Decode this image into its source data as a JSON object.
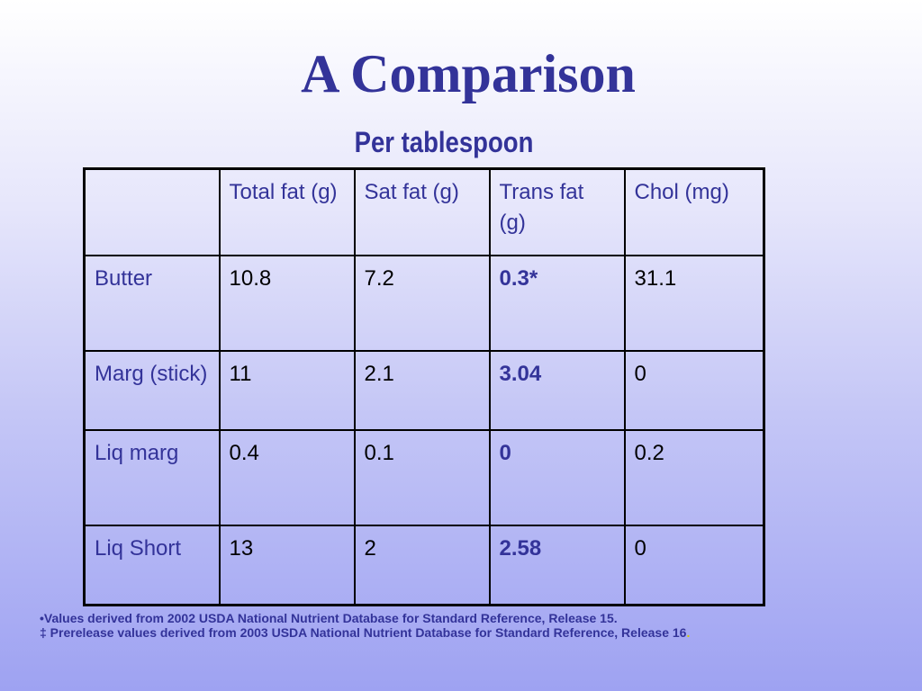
{
  "slide": {
    "title": "A Comparison",
    "subtitle": "Per tablespoon"
  },
  "table": {
    "headers": [
      "",
      "Total fat (g)",
      "Sat fat (g)",
      "Trans fat (g)",
      "Chol (mg)"
    ],
    "rows": [
      {
        "label": "Butter",
        "total_fat": "10.8",
        "sat_fat": "7.2",
        "trans_fat": "0.3*",
        "chol": "31.1"
      },
      {
        "label": "Marg (stick)",
        "total_fat": "11",
        "sat_fat": "2.1",
        "trans_fat": "3.04",
        "chol": "0"
      },
      {
        "label": "Liq marg",
        "total_fat": "0.4",
        "sat_fat": "0.1",
        "trans_fat": "0",
        "chol": "0.2"
      },
      {
        "label": "Liq Short",
        "total_fat": "13",
        "sat_fat": "2",
        "trans_fat": "2.58",
        "chol": "0"
      }
    ]
  },
  "footnotes": {
    "line1": "•Values derived from 2002 USDA National Nutrient Database for Standard Reference, Release 15.",
    "line2": "‡ Prerelease values derived from 2003 USDA National Nutrient Database for Standard Reference, Release 16",
    "line2_end": "."
  },
  "colors": {
    "title": "#333399",
    "trans_fat_highlight": "#333399",
    "background_top": "#ffffff",
    "background_bottom": "#9ea2f2"
  }
}
